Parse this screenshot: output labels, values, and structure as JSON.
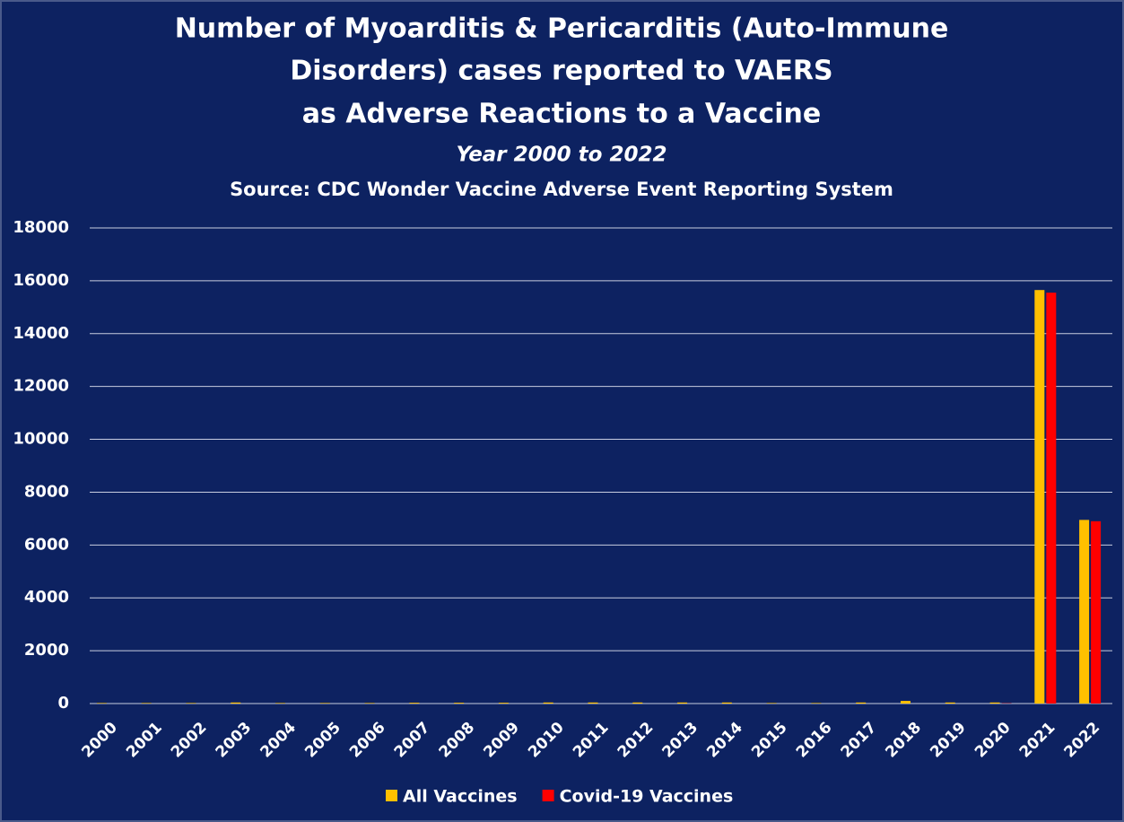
{
  "chart_data": {
    "type": "bar",
    "title": [
      "Number of Myoarditis & Pericarditis (Auto-Immune",
      "Disorders) cases reported to VAERS",
      "as Adverse Reactions to a Vaccine"
    ],
    "subtitle": "Year 2000 to 2022",
    "source": "Source:  CDC Wonder Vaccine Adverse Event Reporting System",
    "categories": [
      "2000",
      "2001",
      "2002",
      "2003",
      "2004",
      "2005",
      "2006",
      "2007",
      "2008",
      "2009",
      "2010",
      "2011",
      "2012",
      "2013",
      "2014",
      "2015",
      "2016",
      "2017",
      "2018",
      "2019",
      "2020",
      "2021",
      "2022"
    ],
    "series": [
      {
        "name": "All Vaccines",
        "color": "#ffc000",
        "values": [
          20,
          20,
          20,
          40,
          20,
          20,
          20,
          30,
          30,
          30,
          40,
          40,
          40,
          40,
          40,
          20,
          20,
          40,
          100,
          40,
          40,
          15650,
          6950
        ]
      },
      {
        "name": "Covid-19 Vaccines",
        "color": "#ff0000",
        "values": [
          0,
          0,
          0,
          0,
          0,
          0,
          0,
          0,
          0,
          0,
          0,
          0,
          0,
          0,
          0,
          0,
          0,
          0,
          0,
          0,
          10,
          15550,
          6900
        ]
      }
    ],
    "ylim": [
      0,
      18000
    ],
    "yticks": [
      0,
      2000,
      4000,
      6000,
      8000,
      10000,
      12000,
      14000,
      16000,
      18000
    ],
    "grid": true,
    "legend": "bottom"
  }
}
